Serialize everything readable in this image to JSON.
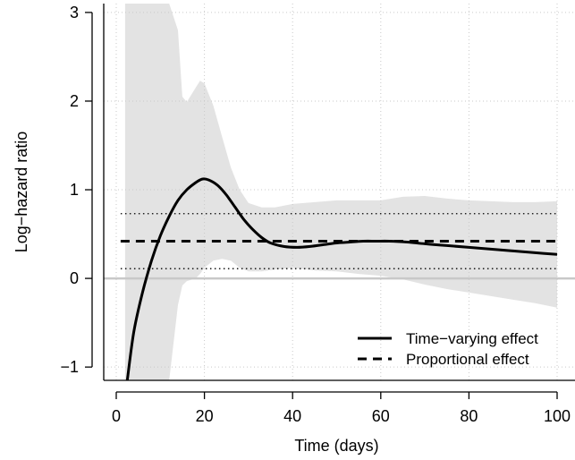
{
  "chart_data": {
    "type": "line",
    "title": "",
    "xlabel": "Time (days)",
    "ylabel": "Log−hazard ratio",
    "xlim": [
      0,
      100
    ],
    "ylim": [
      -1.15,
      3.1
    ],
    "x_ticks": [
      0,
      20,
      40,
      60,
      80,
      100
    ],
    "y_ticks": [
      -1,
      0,
      1,
      2,
      3
    ],
    "x_tick_labels": [
      "0",
      "20",
      "40",
      "60",
      "80",
      "100"
    ],
    "y_tick_labels": [
      "−1",
      "0",
      "1",
      "2",
      "3"
    ],
    "grid": true,
    "legend_position": "bottom-right",
    "legend": [
      {
        "label": "Time−varying effect",
        "style": "solid"
      },
      {
        "label": "Proportional effect",
        "style": "dashed"
      }
    ],
    "series": [
      {
        "name": "Time−varying effect",
        "style": "solid",
        "x": [
          2.5,
          4,
          6,
          8,
          10,
          12,
          14,
          16,
          18,
          19.5,
          21,
          23,
          25,
          27,
          29,
          31,
          33,
          35,
          38,
          41,
          44,
          47,
          50,
          53,
          56,
          59,
          62,
          66,
          70,
          75,
          80,
          85,
          90,
          95,
          100
        ],
        "y": [
          -1.15,
          -0.6,
          -0.15,
          0.2,
          0.48,
          0.7,
          0.88,
          1.0,
          1.08,
          1.12,
          1.11,
          1.05,
          0.94,
          0.8,
          0.66,
          0.55,
          0.46,
          0.4,
          0.36,
          0.35,
          0.36,
          0.38,
          0.4,
          0.41,
          0.42,
          0.42,
          0.42,
          0.41,
          0.39,
          0.37,
          0.35,
          0.33,
          0.31,
          0.29,
          0.27
        ]
      },
      {
        "name": "Proportional effect",
        "style": "dashed",
        "x": [
          1,
          100
        ],
        "y": [
          0.42,
          0.42
        ]
      }
    ],
    "proportional_ci": {
      "lower": 0.11,
      "upper": 0.73,
      "style": "dotted",
      "x": [
        1,
        100
      ]
    },
    "confidence_band": {
      "color": "#e3e3e3",
      "x": [
        2,
        4,
        6,
        8,
        10,
        12,
        14,
        15,
        16,
        18,
        19,
        20,
        22,
        24,
        26,
        28,
        30,
        33,
        36,
        40,
        45,
        50,
        55,
        60,
        65,
        70,
        75,
        80,
        85,
        90,
        95,
        100
      ],
      "upper": [
        3.1,
        3.1,
        3.1,
        3.1,
        3.1,
        3.1,
        2.8,
        2.05,
        1.99,
        2.15,
        2.23,
        2.2,
        1.95,
        1.6,
        1.25,
        1.0,
        0.85,
        0.8,
        0.8,
        0.84,
        0.86,
        0.88,
        0.88,
        0.88,
        0.92,
        0.93,
        0.9,
        0.88,
        0.87,
        0.86,
        0.86,
        0.87
      ],
      "lower": [
        -1.15,
        -1.15,
        -1.15,
        -1.15,
        -1.15,
        -1.15,
        -0.3,
        -0.08,
        -0.03,
        0.0,
        0.05,
        0.12,
        0.2,
        0.22,
        0.2,
        0.12,
        0.08,
        0.08,
        0.1,
        0.12,
        0.09,
        0.08,
        0.05,
        0.03,
        -0.01,
        -0.07,
        -0.12,
        -0.16,
        -0.2,
        -0.24,
        -0.28,
        -0.33
      ]
    },
    "reference_line": {
      "y": 0,
      "color": "#c8c8c8"
    }
  }
}
